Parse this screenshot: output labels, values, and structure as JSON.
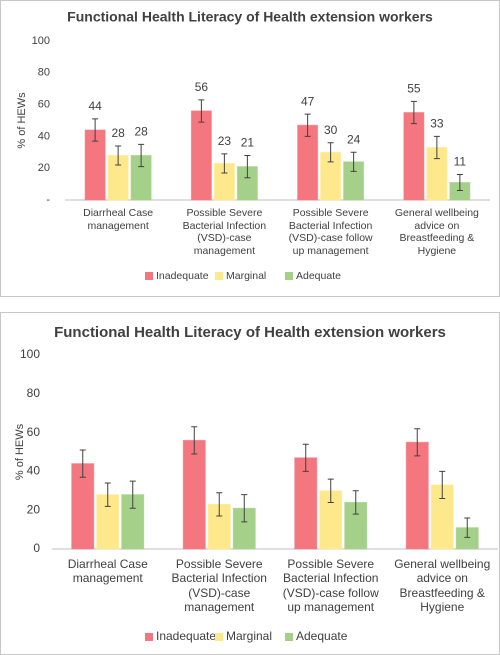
{
  "chart_data": [
    {
      "type": "bar",
      "title": "Functional Health Literacy of Health extension workers",
      "y_label": "% of HEWs",
      "categories": [
        "Diarrheal  Case management",
        "Possible Severe Bacterial Infection (VSD)-case management",
        "Possible Severe Bacterial Infection (VSD)-case  follow up management",
        "General wellbeing advice on Breastfeeding & Hygiene"
      ],
      "series": [
        {
          "name": "Inadequate",
          "color": "#f4777f",
          "values": [
            44,
            56,
            47,
            55
          ],
          "errors": [
            7,
            7,
            7,
            7
          ]
        },
        {
          "name": "Marginal",
          "color": "#fde98c",
          "values": [
            28,
            23,
            30,
            33
          ],
          "errors": [
            6,
            6,
            6,
            7
          ]
        },
        {
          "name": "Adequate",
          "color": "#a4d08a",
          "values": [
            28,
            21,
            24,
            11
          ],
          "errors": [
            7,
            7,
            6,
            5
          ]
        }
      ],
      "ylim": [
        0,
        100
      ],
      "yticks": [
        {
          "value": 0,
          "label": "-"
        },
        20,
        40,
        60,
        80,
        100
      ],
      "data_labels": true,
      "grid": false,
      "legend": "bottom"
    },
    {
      "type": "bar",
      "title": "Functional Health Literacy of Health extension workers",
      "y_label": "% of HEWs",
      "categories": [
        "Diarrheal  Case management",
        "Possible Severe Bacterial Infection (VSD)-case management",
        "Possible Severe Bacterial Infection (VSD)-case  follow up management",
        "General wellbeing advice on Breastfeeding & Hygiene"
      ],
      "series": [
        {
          "name": "Inadequate",
          "color": "#f4777f",
          "values": [
            44,
            56,
            47,
            55
          ],
          "errors": [
            7,
            7,
            7,
            7
          ]
        },
        {
          "name": "Marginal",
          "color": "#fde98c",
          "values": [
            28,
            23,
            30,
            33
          ],
          "errors": [
            6,
            6,
            6,
            7
          ]
        },
        {
          "name": "Adequate",
          "color": "#a4d08a",
          "values": [
            28,
            21,
            24,
            11
          ],
          "errors": [
            7,
            7,
            6,
            5
          ]
        }
      ],
      "ylim": [
        0,
        100
      ],
      "yticks": [
        0,
        20,
        40,
        60,
        80,
        100
      ],
      "data_labels": false,
      "grid": false,
      "legend": "bottom"
    }
  ]
}
